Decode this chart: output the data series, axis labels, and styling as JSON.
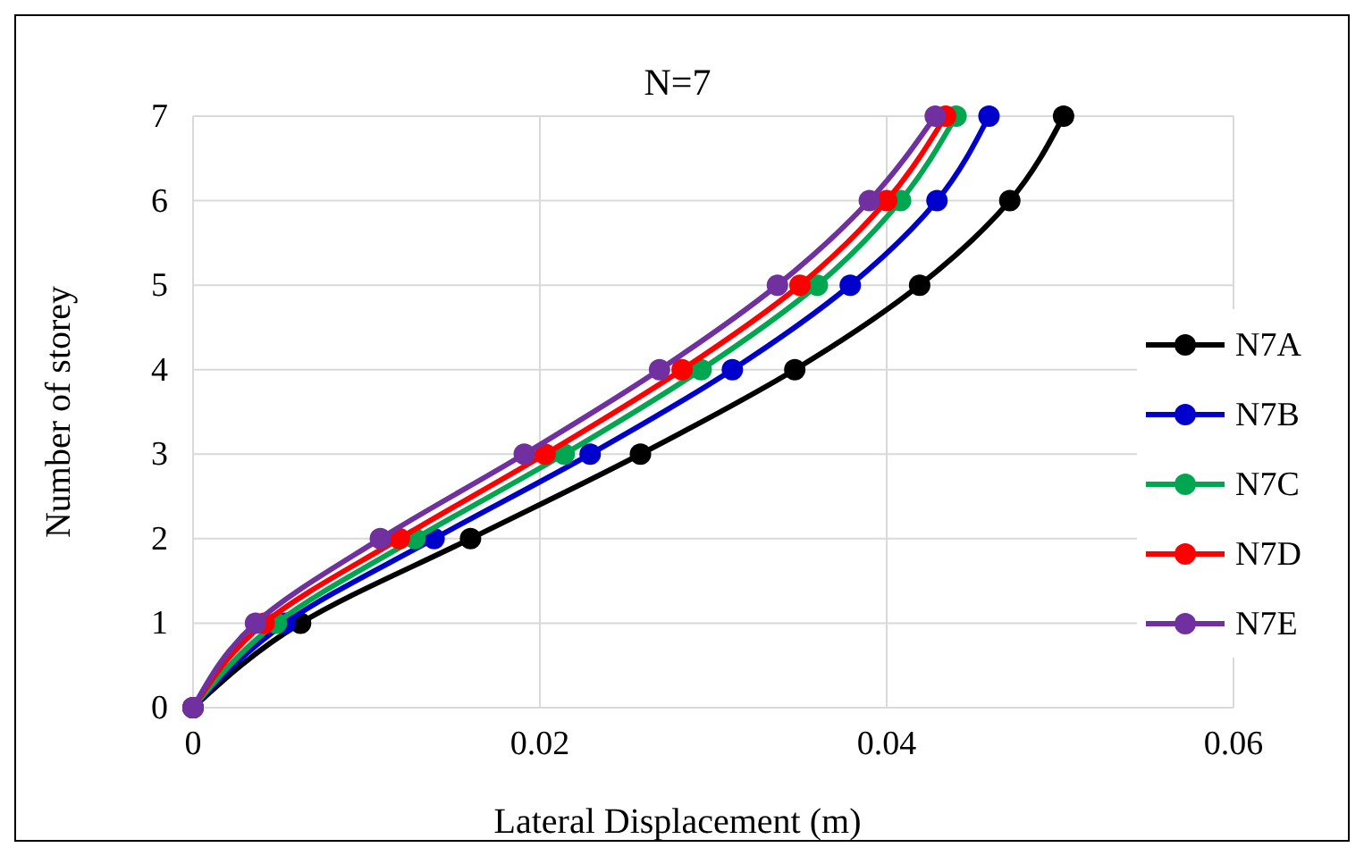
{
  "chart_data": {
    "type": "line",
    "title": "N=7",
    "xlabel": "Lateral Displacement (m)",
    "ylabel": "Number of storey",
    "xlim": [
      0,
      0.06
    ],
    "xticks": [
      0,
      0.02,
      0.04,
      0.06
    ],
    "ylim": [
      0,
      7
    ],
    "yticks": [
      0,
      1,
      2,
      3,
      4,
      5,
      6,
      7
    ],
    "grid": true,
    "legend": "right",
    "marker": "circle",
    "line_style": "solid",
    "series": [
      {
        "name": "N7A",
        "color": "#000000",
        "x": [
          0,
          0.0062,
          0.016,
          0.0258,
          0.0347,
          0.0419,
          0.0471,
          0.0502
        ],
        "values": [
          0,
          1,
          2,
          3,
          4,
          5,
          6,
          7
        ]
      },
      {
        "name": "N7B",
        "color": "#0000cc",
        "x": [
          0,
          0.0053,
          0.0139,
          0.0229,
          0.0311,
          0.0379,
          0.0429,
          0.0459
        ],
        "values": [
          0,
          1,
          2,
          3,
          4,
          5,
          6,
          7
        ]
      },
      {
        "name": "N7C",
        "color": "#00a650",
        "x": [
          0,
          0.0048,
          0.0128,
          0.0214,
          0.0293,
          0.036,
          0.0408,
          0.044
        ],
        "values": [
          0,
          1,
          2,
          3,
          4,
          5,
          6,
          7
        ]
      },
      {
        "name": "N7D",
        "color": "#ff0000",
        "x": [
          0,
          0.0041,
          0.0119,
          0.0203,
          0.0282,
          0.035,
          0.04,
          0.0434
        ],
        "values": [
          0,
          1,
          2,
          3,
          4,
          5,
          6,
          7
        ]
      },
      {
        "name": "N7E",
        "color": "#7030a0",
        "x": [
          0,
          0.0036,
          0.0108,
          0.0191,
          0.0269,
          0.0337,
          0.039,
          0.0428
        ],
        "values": [
          0,
          1,
          2,
          3,
          4,
          5,
          6,
          7
        ]
      }
    ]
  }
}
